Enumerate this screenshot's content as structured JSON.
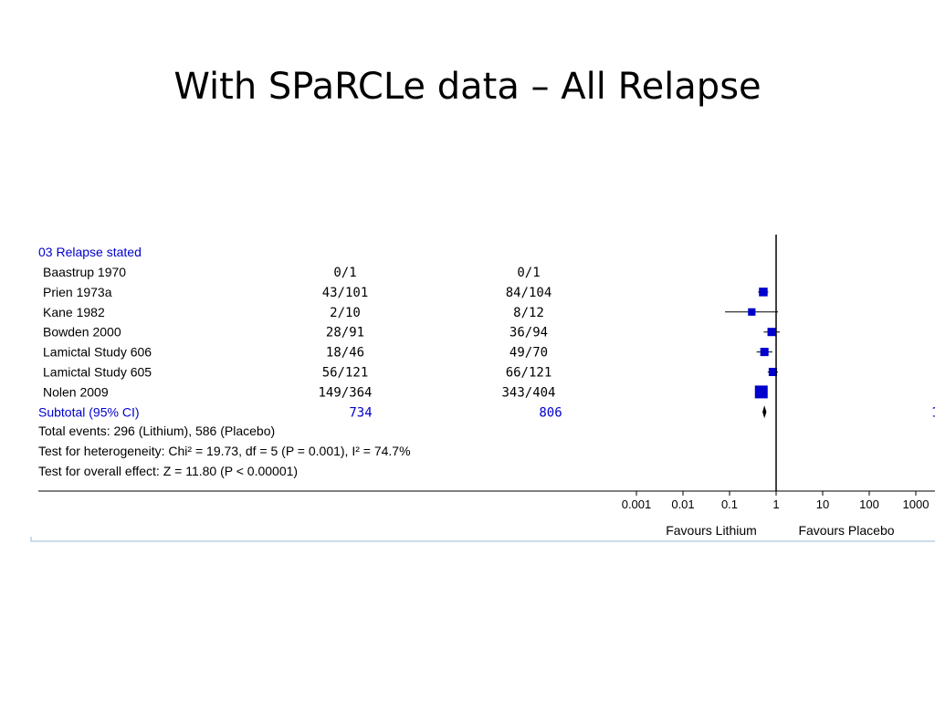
{
  "slide": {
    "title": "With SPaRCLe data – All Relapse"
  },
  "chart_data": {
    "type": "forest",
    "group_heading": "03 Relapse stated",
    "x_scale": "log",
    "x_ticks": [
      "0.001",
      "0.01",
      "0.1",
      "1",
      "10",
      "100",
      "1000"
    ],
    "x_tick_values": [
      0.001,
      0.01,
      0.1,
      1,
      10,
      100,
      1000
    ],
    "favours_left": "Favours Lithium",
    "favours_right": "Favours Placebo",
    "studies": [
      {
        "name": "Baastrup  1970",
        "lithium": "0/1",
        "placebo": "0/1",
        "estimate": null,
        "ci_low": null,
        "ci_high": null,
        "weight": 0
      },
      {
        "name": "Prien 1973a",
        "lithium": "43/101",
        "placebo": "84/104",
        "estimate": 0.53,
        "ci_low": 0.41,
        "ci_high": 0.68,
        "weight": 0.5
      },
      {
        "name": "Kane 1982",
        "lithium": "2/10",
        "placebo": "8/12",
        "estimate": 0.3,
        "ci_low": 0.08,
        "ci_high": 1.1,
        "weight": 0.35
      },
      {
        "name": "Bowden 2000",
        "lithium": "28/91",
        "placebo": "36/94",
        "estimate": 0.8,
        "ci_low": 0.54,
        "ci_high": 1.2,
        "weight": 0.45
      },
      {
        "name": "Lamictal Study 606",
        "lithium": "18/46",
        "placebo": "49/70",
        "estimate": 0.56,
        "ci_low": 0.38,
        "ci_high": 0.83,
        "weight": 0.45
      },
      {
        "name": "Lamictal Study 605",
        "lithium": "56/121",
        "placebo": "66/121",
        "estimate": 0.85,
        "ci_low": 0.66,
        "ci_high": 1.09,
        "weight": 0.45
      },
      {
        "name": "Nolen 2009",
        "lithium": "149/364",
        "placebo": "343/404",
        "estimate": 0.48,
        "ci_low": 0.42,
        "ci_high": 0.55,
        "weight": 1.0
      }
    ],
    "subtotal": {
      "label": "Subtotal (95% CI)",
      "lithium": "734",
      "placebo": "806",
      "estimate": 0.56,
      "ci_low": 0.51,
      "ci_high": 0.62,
      "trailing": "1"
    },
    "footer_lines": [
      "Total events: 296 (Lithium), 586 (Placebo)",
      "Test for heterogeneity: Chi² = 19.73, df = 5 (P = 0.001), I² = 74.7%",
      "Test for overall effect: Z = 11.80 (P < 0.00001)"
    ],
    "colors": {
      "marker": "#0000cc",
      "heading": "#0000cc",
      "text": "#000000",
      "frame": "#9bb7d4"
    }
  }
}
